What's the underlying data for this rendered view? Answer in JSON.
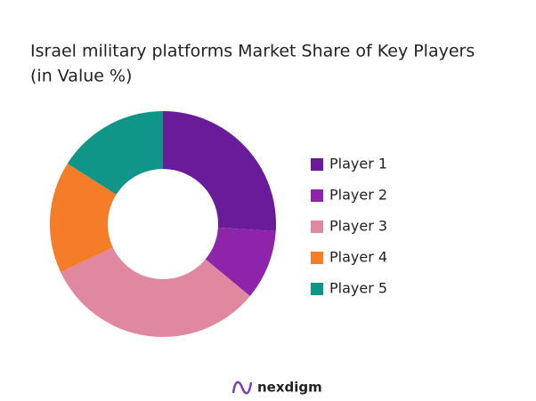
{
  "chart_data": {
    "type": "donut",
    "title_lines": [
      "Israel military platforms Market Share of Key Players",
      "(in Value %)"
    ],
    "categories": [
      "Player 1",
      "Player 2",
      "Player 3",
      "Player 4",
      "Player 5"
    ],
    "values": [
      26,
      10,
      32,
      16,
      16
    ],
    "colors": [
      "#6a1b9a",
      "#8e24aa",
      "#e088a0",
      "#f57c28",
      "#0f9688"
    ],
    "legend": "right"
  },
  "logo": "nexdigm"
}
